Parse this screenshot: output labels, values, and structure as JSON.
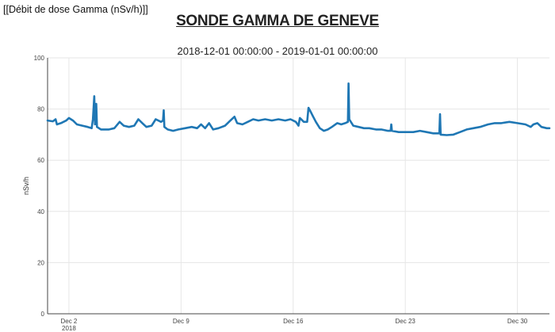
{
  "header": {
    "corner_label": "[[Débit de dose Gamma (nSv/h)]]"
  },
  "chart_data": {
    "type": "line",
    "title": "SONDE GAMMA DE GENEVE",
    "subtitle": "2018-12-01 00:00:00 - 2019-01-01 00:00:00",
    "ylabel": "nSv/h",
    "xlabel": "",
    "ylim": [
      0,
      100
    ],
    "xlim": [
      "2018-11-30 16:00",
      "2019-01-01 00:00"
    ],
    "yticks": [
      0,
      20,
      40,
      60,
      80,
      100
    ],
    "xticks": [
      {
        "date": "2018-12-02",
        "label": "Dec 2",
        "sublabel": "2018"
      },
      {
        "date": "2018-12-09",
        "label": "Dec 9",
        "sublabel": ""
      },
      {
        "date": "2018-12-16",
        "label": "Dec 16",
        "sublabel": ""
      },
      {
        "date": "2018-12-23",
        "label": "Dec 23",
        "sublabel": ""
      },
      {
        "date": "2018-12-30",
        "label": "Dec 30",
        "sublabel": ""
      }
    ],
    "grid": true,
    "line_color": "#1f77b4",
    "series": [
      {
        "points": [
          [
            "2018-11-30 16:00",
            75.5
          ],
          [
            "2018-12-01 00:00",
            75.2
          ],
          [
            "2018-12-01 04:00",
            76.0
          ],
          [
            "2018-12-01 06:00",
            74.0
          ],
          [
            "2018-12-01 12:00",
            74.5
          ],
          [
            "2018-12-01 20:00",
            75.5
          ],
          [
            "2018-12-02 00:00",
            76.5
          ],
          [
            "2018-12-02 06:00",
            75.5
          ],
          [
            "2018-12-02 12:00",
            74.0
          ],
          [
            "2018-12-02 20:00",
            73.5
          ],
          [
            "2018-12-03 04:00",
            73.0
          ],
          [
            "2018-12-03 10:00",
            72.5
          ],
          [
            "2018-12-03 12:00",
            76.0
          ],
          [
            "2018-12-03 14:00",
            85.0
          ],
          [
            "2018-12-03 15:00",
            74.0
          ],
          [
            "2018-12-03 17:00",
            82.0
          ],
          [
            "2018-12-03 18:00",
            73.0
          ],
          [
            "2018-12-04 00:00",
            72.0
          ],
          [
            "2018-12-04 12:00",
            72.0
          ],
          [
            "2018-12-04 20:00",
            72.5
          ],
          [
            "2018-12-05 04:00",
            75.0
          ],
          [
            "2018-12-05 10:00",
            73.5
          ],
          [
            "2018-12-05 18:00",
            73.0
          ],
          [
            "2018-12-06 02:00",
            73.5
          ],
          [
            "2018-12-06 08:00",
            76.0
          ],
          [
            "2018-12-06 14:00",
            74.5
          ],
          [
            "2018-12-06 20:00",
            73.0
          ],
          [
            "2018-12-07 04:00",
            73.5
          ],
          [
            "2018-12-07 10:00",
            76.0
          ],
          [
            "2018-12-07 18:00",
            75.0
          ],
          [
            "2018-12-07 21:00",
            75.5
          ],
          [
            "2018-12-07 22:00",
            79.5
          ],
          [
            "2018-12-07 23:00",
            73.0
          ],
          [
            "2018-12-08 04:00",
            72.0
          ],
          [
            "2018-12-08 12:00",
            71.5
          ],
          [
            "2018-12-08 20:00",
            72.0
          ],
          [
            "2018-12-09 06:00",
            72.5
          ],
          [
            "2018-12-09 16:00",
            73.0
          ],
          [
            "2018-12-10 00:00",
            72.5
          ],
          [
            "2018-12-10 06:00",
            74.0
          ],
          [
            "2018-12-10 12:00",
            72.5
          ],
          [
            "2018-12-10 18:00",
            74.5
          ],
          [
            "2018-12-11 00:00",
            72.0
          ],
          [
            "2018-12-11 08:00",
            72.5
          ],
          [
            "2018-12-11 18:00",
            73.5
          ],
          [
            "2018-12-12 02:00",
            75.5
          ],
          [
            "2018-12-12 08:00",
            77.0
          ],
          [
            "2018-12-12 12:00",
            74.5
          ],
          [
            "2018-12-12 20:00",
            74.0
          ],
          [
            "2018-12-13 04:00",
            75.0
          ],
          [
            "2018-12-13 12:00",
            76.0
          ],
          [
            "2018-12-13 20:00",
            75.5
          ],
          [
            "2018-12-14 06:00",
            76.0
          ],
          [
            "2018-12-14 16:00",
            75.5
          ],
          [
            "2018-12-15 02:00",
            76.0
          ],
          [
            "2018-12-15 12:00",
            75.5
          ],
          [
            "2018-12-15 20:00",
            76.0
          ],
          [
            "2018-12-16 04:00",
            75.0
          ],
          [
            "2018-12-16 08:00",
            73.5
          ],
          [
            "2018-12-16 10:00",
            76.5
          ],
          [
            "2018-12-16 16:00",
            75.0
          ],
          [
            "2018-12-16 21:00",
            75.0
          ],
          [
            "2018-12-16 23:00",
            80.5
          ],
          [
            "2018-12-17 02:00",
            79.0
          ],
          [
            "2018-12-17 06:00",
            77.0
          ],
          [
            "2018-12-17 10:00",
            75.0
          ],
          [
            "2018-12-17 16:00",
            72.5
          ],
          [
            "2018-12-17 22:00",
            71.5
          ],
          [
            "2018-12-18 04:00",
            72.0
          ],
          [
            "2018-12-18 10:00",
            73.0
          ],
          [
            "2018-12-18 18:00",
            74.5
          ],
          [
            "2018-12-19 00:00",
            74.0
          ],
          [
            "2018-12-19 06:00",
            74.5
          ],
          [
            "2018-12-19 10:00",
            75.0
          ],
          [
            "2018-12-19 11:00",
            90.0
          ],
          [
            "2018-12-19 12:00",
            76.0
          ],
          [
            "2018-12-19 18:00",
            73.5
          ],
          [
            "2018-12-20 02:00",
            73.0
          ],
          [
            "2018-12-20 10:00",
            72.5
          ],
          [
            "2018-12-20 18:00",
            72.5
          ],
          [
            "2018-12-21 04:00",
            72.0
          ],
          [
            "2018-12-21 12:00",
            72.0
          ],
          [
            "2018-12-21 22:00",
            71.5
          ],
          [
            "2018-12-22 02:00",
            71.5
          ],
          [
            "2018-12-22 03:00",
            74.0
          ],
          [
            "2018-12-22 04:00",
            71.5
          ],
          [
            "2018-12-22 14:00",
            71.0
          ],
          [
            "2018-12-23 00:00",
            71.0
          ],
          [
            "2018-12-23 12:00",
            71.0
          ],
          [
            "2018-12-23 22:00",
            71.5
          ],
          [
            "2018-12-24 08:00",
            71.0
          ],
          [
            "2018-12-24 18:00",
            70.5
          ],
          [
            "2018-12-25 00:00",
            70.5
          ],
          [
            "2018-12-25 03:00",
            70.5
          ],
          [
            "2018-12-25 04:00",
            78.0
          ],
          [
            "2018-12-25 05:00",
            70.0
          ],
          [
            "2018-12-25 14:00",
            69.8
          ],
          [
            "2018-12-26 00:00",
            70.0
          ],
          [
            "2018-12-26 10:00",
            71.0
          ],
          [
            "2018-12-26 20:00",
            72.0
          ],
          [
            "2018-12-27 06:00",
            72.5
          ],
          [
            "2018-12-27 16:00",
            73.0
          ],
          [
            "2018-12-28 04:00",
            74.0
          ],
          [
            "2018-12-28 14:00",
            74.5
          ],
          [
            "2018-12-29 00:00",
            74.5
          ],
          [
            "2018-12-29 12:00",
            75.0
          ],
          [
            "2018-12-30 00:00",
            74.5
          ],
          [
            "2018-12-30 12:00",
            74.0
          ],
          [
            "2018-12-30 20:00",
            73.0
          ],
          [
            "2018-12-31 00:00",
            74.0
          ],
          [
            "2018-12-31 06:00",
            74.5
          ],
          [
            "2018-12-31 12:00",
            73.0
          ],
          [
            "2018-12-31 20:00",
            72.5
          ],
          [
            "2019-01-01 00:00",
            72.5
          ]
        ]
      }
    ]
  }
}
